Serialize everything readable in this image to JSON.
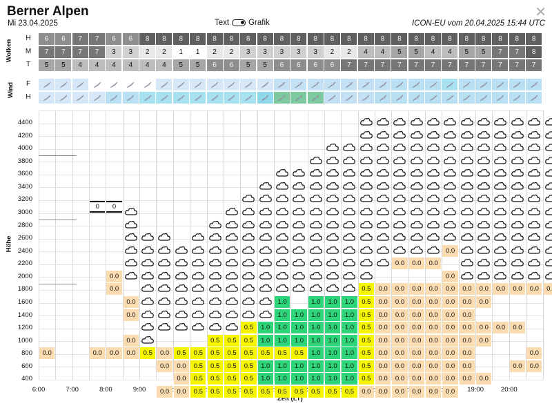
{
  "header": {
    "title": "Berner Alpen",
    "date": "Mi 23.04.2025",
    "toggle_left": "Text",
    "toggle_right": "Grafik",
    "model": "ICON-EU vom 20.04.2025 15:44 UTC",
    "close": "✕"
  },
  "clouds": {
    "group_label": "Wolken",
    "rows": [
      {
        "label": "H",
        "values": [
          6,
          6,
          7,
          7,
          6,
          6,
          8,
          8,
          8,
          8,
          8,
          8,
          8,
          8,
          8,
          8,
          8,
          8,
          8,
          8,
          8,
          8,
          8,
          8,
          8,
          8,
          8,
          8,
          8,
          8,
          8
        ]
      },
      {
        "label": "M",
        "values": [
          7,
          7,
          7,
          7,
          3,
          3,
          2,
          2,
          1,
          1,
          2,
          2,
          3,
          3,
          3,
          3,
          3,
          2,
          2,
          4,
          4,
          5,
          5,
          4,
          4,
          5,
          5,
          7,
          7,
          8,
          8
        ]
      },
      {
        "label": "T",
        "values": [
          5,
          5,
          4,
          4,
          4,
          4,
          4,
          4,
          5,
          5,
          6,
          6,
          5,
          5,
          6,
          6,
          6,
          6,
          7,
          7,
          7,
          7,
          7,
          7,
          7,
          7,
          7,
          7,
          7,
          7,
          7
        ]
      }
    ],
    "colors": {
      "1": "#ffffff",
      "2": "#e8e8e8",
      "3": "#d0d0d0",
      "4": "#bdbdbd",
      "5": "#a6a6a6",
      "6": "#8e8e8e",
      "7": "#777777",
      "8": "#5f5f5f"
    }
  },
  "wind": {
    "group_label": "Wind",
    "rows": [
      {
        "label": "F",
        "colors": [
          "#d6e8f7",
          "#d6e8f7",
          "#d6e8f7",
          "#ffffff",
          "#ffffff",
          "#ffffff",
          "#ffffff",
          "#d6e8f7",
          "#d6e8f7",
          "#d6e8f7",
          "#d6e8f7",
          "#d6e8f7",
          "#d6e8f7",
          "#d6e8f7",
          "#c4e0f4",
          "#c4e0f4",
          "#c4e0f4",
          "#c4e0f4",
          "#c4e0f4",
          "#c4e0f4",
          "#c4e0f4",
          "#b8dff2",
          "#b8dff2",
          "#b8dff2",
          "#a8e2f1",
          "#b8dff2",
          "#b8dff2",
          "#b8dff2",
          "#b8dff2",
          "#b8dff2",
          "#b8dff2"
        ]
      },
      {
        "label": "H",
        "colors": [
          "#d6e8f7",
          "#d6e8f7",
          "#d6e8f7",
          "#d6e8f7",
          "#b8dff2",
          "#b8dff2",
          "#a8e2f1",
          "#a8e2f1",
          "#a8e2f1",
          "#a8e2f1",
          "#a8e2f1",
          "#a8e2f1",
          "#a8e2f1",
          "#8fd8ea",
          "#7ec8a0",
          "#7ec8a0",
          "#7ec8a0",
          "#c4e0f4",
          "#c4e0f4",
          "#c4e0f4",
          "#b8dff2",
          "#b8dff2",
          "#b8dff2",
          "#b8dff2",
          "#b8dff2",
          "#b8dff2",
          "#b8dff2",
          "#b8dff2",
          "#b8dff2",
          "#b8dff2",
          "#b8dff2"
        ]
      }
    ]
  },
  "chart": {
    "y_title": "Höhe",
    "x_title": "Zeit (LT)",
    "y_ticks": [
      "4400",
      "4200",
      "4000",
      "3800",
      "3600",
      "3400",
      "3200",
      "3000",
      "2800",
      "2600",
      "2400",
      "2200",
      "2000",
      "1800",
      "1600",
      "1400",
      "1200",
      "1000",
      "800",
      "600",
      "400"
    ],
    "x_ticks": [
      "6:00",
      "7:00",
      "8:00",
      "9:00",
      "10:00",
      "11:00",
      "12:00",
      "13:00",
      "14:00",
      "15:00",
      "16:00",
      "17:00",
      "18:00",
      "19:00",
      "20:00"
    ],
    "lift_colors": {
      "0.0": "#fbdcb0",
      "0.5": "#f5f500",
      "1.0": "#2ed47a"
    },
    "box_8am": [
      "0",
      "0"
    ],
    "lift_rows": [
      {
        "row": 13,
        "cells": [
          [
            4,
            "0.0"
          ],
          [
            19,
            "0.5"
          ],
          [
            20,
            "0.0"
          ],
          [
            21,
            "0.0"
          ],
          [
            22,
            "0.0"
          ],
          [
            23,
            "0.0"
          ],
          [
            24,
            "0.0"
          ],
          [
            25,
            "0.0"
          ],
          [
            26,
            "0.0"
          ],
          [
            27,
            "0.0"
          ],
          [
            28,
            "0.0"
          ],
          [
            29,
            "0.0"
          ],
          [
            30,
            "0.0"
          ]
        ]
      },
      {
        "row": 14,
        "cells": [
          [
            5,
            "0.0"
          ],
          [
            14,
            "1.0"
          ],
          [
            16,
            "1.0"
          ],
          [
            17,
            "1.0"
          ],
          [
            18,
            "1.0"
          ],
          [
            19,
            "0.5"
          ],
          [
            20,
            "0.0"
          ],
          [
            21,
            "0.0"
          ],
          [
            22,
            "0.0"
          ],
          [
            23,
            "0.0"
          ],
          [
            24,
            "0.0"
          ],
          [
            25,
            "0.0"
          ],
          [
            26,
            "0.0"
          ]
        ]
      },
      {
        "row": 15,
        "cells": [
          [
            5,
            "0.0"
          ],
          [
            14,
            "1.0"
          ],
          [
            15,
            "1.0"
          ],
          [
            16,
            "1.0"
          ],
          [
            17,
            "1.0"
          ],
          [
            18,
            "1.0"
          ],
          [
            19,
            "0.5"
          ],
          [
            20,
            "0.0"
          ],
          [
            21,
            "0.0"
          ],
          [
            22,
            "0.0"
          ],
          [
            23,
            "0.0"
          ],
          [
            24,
            "0.0"
          ],
          [
            25,
            "0.0"
          ]
        ]
      },
      {
        "row": 16,
        "cells": [
          [
            12,
            "0.5"
          ],
          [
            13,
            "1.0"
          ],
          [
            14,
            "1.0"
          ],
          [
            15,
            "1.0"
          ],
          [
            16,
            "1.0"
          ],
          [
            17,
            "1.0"
          ],
          [
            18,
            "1.0"
          ],
          [
            19,
            "0.5"
          ],
          [
            20,
            "0.0"
          ],
          [
            21,
            "0.0"
          ],
          [
            22,
            "0.0"
          ],
          [
            23,
            "0.0"
          ],
          [
            24,
            "0.0"
          ],
          [
            25,
            "0.0"
          ],
          [
            26,
            "0.0"
          ],
          [
            27,
            "0.0"
          ],
          [
            28,
            "0.0"
          ]
        ]
      },
      {
        "row": 17,
        "cells": [
          [
            5,
            "0.0"
          ],
          [
            10,
            "0.5"
          ],
          [
            11,
            "0.5"
          ],
          [
            12,
            "0.5"
          ],
          [
            13,
            "1.0"
          ],
          [
            14,
            "1.0"
          ],
          [
            15,
            "1.0"
          ],
          [
            16,
            "1.0"
          ],
          [
            17,
            "1.0"
          ],
          [
            18,
            "1.0"
          ],
          [
            19,
            "0.5"
          ],
          [
            20,
            "0.0"
          ],
          [
            21,
            "0.0"
          ],
          [
            22,
            "0.0"
          ],
          [
            23,
            "0.0"
          ],
          [
            24,
            "0.0"
          ],
          [
            25,
            "0.0"
          ],
          [
            26,
            "0.0"
          ]
        ]
      },
      {
        "row": 18,
        "cells": [
          [
            0,
            "0.0"
          ],
          [
            3,
            "0.0"
          ],
          [
            4,
            "0.0"
          ],
          [
            5,
            "0.0"
          ],
          [
            6,
            "0.5"
          ],
          [
            7,
            "0.0"
          ],
          [
            8,
            "0.5"
          ],
          [
            9,
            "0.5"
          ],
          [
            10,
            "0.5"
          ],
          [
            11,
            "0.5"
          ],
          [
            12,
            "0.5"
          ],
          [
            13,
            "0.5"
          ],
          [
            14,
            "0.5"
          ],
          [
            15,
            "0.5"
          ],
          [
            16,
            "1.0"
          ],
          [
            17,
            "1.0"
          ],
          [
            18,
            "1.0"
          ],
          [
            19,
            "0.5"
          ],
          [
            20,
            "0.0"
          ],
          [
            21,
            "0.0"
          ],
          [
            22,
            "0.0"
          ],
          [
            23,
            "0.0"
          ],
          [
            24,
            "0.0"
          ],
          [
            25,
            "0.0"
          ],
          [
            29,
            "0.0"
          ]
        ]
      },
      {
        "row": 19,
        "cells": [
          [
            7,
            "0.0"
          ],
          [
            8,
            "0.0"
          ],
          [
            9,
            "0.5"
          ],
          [
            10,
            "0.5"
          ],
          [
            11,
            "0.5"
          ],
          [
            12,
            "0.5"
          ],
          [
            13,
            "1.0"
          ],
          [
            14,
            "1.0"
          ],
          [
            15,
            "1.0"
          ],
          [
            16,
            "1.0"
          ],
          [
            17,
            "1.0"
          ],
          [
            18,
            "1.0"
          ],
          [
            19,
            "0.5"
          ],
          [
            20,
            "0.0"
          ],
          [
            21,
            "0.0"
          ],
          [
            22,
            "0.0"
          ],
          [
            23,
            "0.0"
          ],
          [
            24,
            "0.0"
          ],
          [
            25,
            "0.0"
          ],
          [
            28,
            "0.0"
          ],
          [
            29,
            "0.0"
          ]
        ]
      },
      {
        "row": 20,
        "cells": [
          [
            8,
            "0.0"
          ],
          [
            9,
            "0.5"
          ],
          [
            10,
            "0.5"
          ],
          [
            11,
            "0.5"
          ],
          [
            12,
            "0.5"
          ],
          [
            13,
            "1.0"
          ],
          [
            14,
            "1.0"
          ],
          [
            15,
            "1.0"
          ],
          [
            16,
            "1.0"
          ],
          [
            17,
            "1.0"
          ],
          [
            18,
            "1.0"
          ],
          [
            19,
            "0.5"
          ],
          [
            20,
            "0.0"
          ],
          [
            21,
            "0.0"
          ],
          [
            22,
            "0.0"
          ],
          [
            23,
            "0.0"
          ],
          [
            24,
            "0.0"
          ],
          [
            25,
            "0.0"
          ],
          [
            26,
            "0.0"
          ]
        ]
      },
      {
        "row": 21,
        "cells": [
          [
            7,
            "0.0"
          ],
          [
            8,
            "0.0"
          ],
          [
            9,
            "0.5"
          ],
          [
            10,
            "0.5"
          ],
          [
            11,
            "0.5"
          ],
          [
            12,
            "0.5"
          ],
          [
            13,
            "0.5"
          ],
          [
            14,
            "0.5"
          ],
          [
            15,
            "0.5"
          ],
          [
            16,
            "0.5"
          ],
          [
            17,
            "0.5"
          ],
          [
            18,
            "0.5"
          ],
          [
            19,
            "0.0"
          ],
          [
            20,
            "0.0"
          ],
          [
            21,
            "0.0"
          ],
          [
            22,
            "0.0"
          ],
          [
            23,
            "0.0"
          ],
          [
            24,
            "0.0"
          ]
        ]
      },
      {
        "row": 12,
        "cells": [
          [
            4,
            "0.0"
          ],
          [
            24,
            "0.0"
          ]
        ]
      },
      {
        "row": 11,
        "cells": [
          [
            21,
            "0.0"
          ],
          [
            22,
            "0.0"
          ],
          [
            23,
            "0.0"
          ]
        ]
      },
      {
        "row": 10,
        "cells": [
          [
            24,
            "0.0"
          ]
        ]
      }
    ],
    "cloud_columns": [
      {
        "col": 5,
        "top": 7,
        "bottom": 12
      },
      {
        "col": 6,
        "top": 9,
        "bottom": 17
      },
      {
        "col": 7,
        "top": 9,
        "bottom": 16
      },
      {
        "col": 8,
        "top": 10,
        "bottom": 16
      },
      {
        "col": 9,
        "top": 9,
        "bottom": 16
      },
      {
        "col": 10,
        "top": 8,
        "bottom": 16
      },
      {
        "col": 11,
        "top": 7,
        "bottom": 16
      },
      {
        "col": 12,
        "top": 6,
        "bottom": 15
      },
      {
        "col": 13,
        "top": 5,
        "bottom": 15
      },
      {
        "col": 14,
        "top": 4,
        "bottom": 13
      },
      {
        "col": 15,
        "top": 4,
        "bottom": 13
      },
      {
        "col": 16,
        "top": 3,
        "bottom": 13
      },
      {
        "col": 17,
        "top": 2,
        "bottom": 13
      },
      {
        "col": 18,
        "top": 2,
        "bottom": 13
      },
      {
        "col": 19,
        "top": 0,
        "bottom": 12
      },
      {
        "col": 20,
        "top": 0,
        "bottom": 11
      },
      {
        "col": 21,
        "top": 0,
        "bottom": 10
      },
      {
        "col": 22,
        "top": 0,
        "bottom": 10
      },
      {
        "col": 23,
        "top": 0,
        "bottom": 10
      },
      {
        "col": 24,
        "top": 0,
        "bottom": 9
      },
      {
        "col": 25,
        "top": 0,
        "bottom": 12
      },
      {
        "col": 26,
        "top": 0,
        "bottom": 14
      },
      {
        "col": 27,
        "top": 0,
        "bottom": 12
      },
      {
        "col": 28,
        "top": 0,
        "bottom": 12
      },
      {
        "col": 29,
        "top": 0,
        "bottom": 12
      },
      {
        "col": 30,
        "top": 0,
        "bottom": 12
      }
    ]
  }
}
